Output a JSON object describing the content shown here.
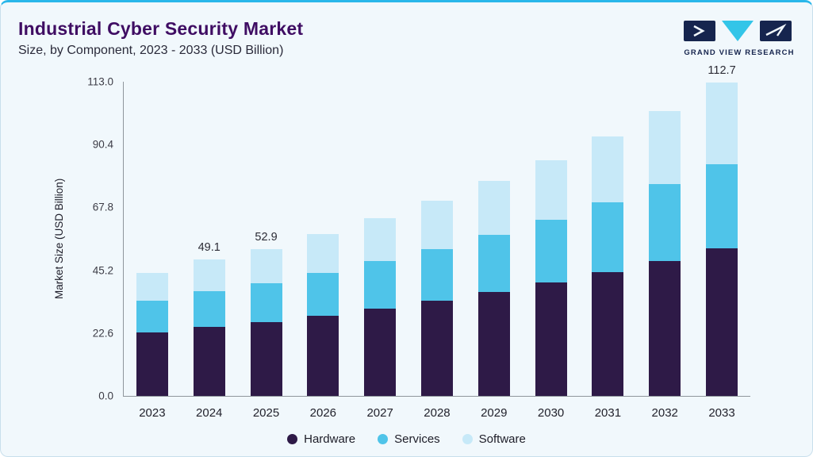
{
  "header": {
    "title": "Industrial Cyber Security Market",
    "subtitle": "Size, by Component, 2023 - 2033 (USD Billion)",
    "logo_text": "GRAND VIEW RESEARCH"
  },
  "colors": {
    "accent_line": "#29b7ea",
    "title": "#3f0d63",
    "card_background": "#f1f8fc",
    "card_border": "#c8dfec",
    "axis": "#8f969c",
    "logo_navy": "#16254e",
    "logo_teal": "#33c5e8"
  },
  "chart_data": {
    "type": "bar",
    "stacked": true,
    "title": "Industrial Cyber Security Market Size, by Component, 2023 - 2033 (USD Billion)",
    "categories": [
      "2023",
      "2024",
      "2025",
      "2026",
      "2027",
      "2028",
      "2029",
      "2030",
      "2031",
      "2032",
      "2033"
    ],
    "series": [
      {
        "name": "Hardware",
        "color": "#2e1a47",
        "values": [
          22.7,
          24.8,
          26.5,
          28.9,
          31.5,
          34.3,
          37.4,
          40.8,
          44.5,
          48.6,
          53.0
        ]
      },
      {
        "name": "Services",
        "color": "#4fc4e9",
        "values": [
          11.6,
          12.8,
          13.9,
          15.3,
          16.9,
          18.6,
          20.5,
          22.6,
          25.0,
          27.6,
          30.4
        ]
      },
      {
        "name": "Software",
        "color": "#c7e9f8",
        "values": [
          9.9,
          11.5,
          12.5,
          13.9,
          15.5,
          17.3,
          19.3,
          21.4,
          23.8,
          26.3,
          29.3
        ]
      }
    ],
    "totals_labeled": {
      "2024": "49.1",
      "2025": "52.9",
      "2033": "112.7"
    },
    "xlabel": "",
    "ylabel": "Market Size (USD Billion)",
    "ylim": [
      0,
      113.0
    ],
    "yticks": [
      0.0,
      22.6,
      45.2,
      67.8,
      90.4,
      113.0
    ],
    "grid": false,
    "legend_position": "bottom"
  }
}
